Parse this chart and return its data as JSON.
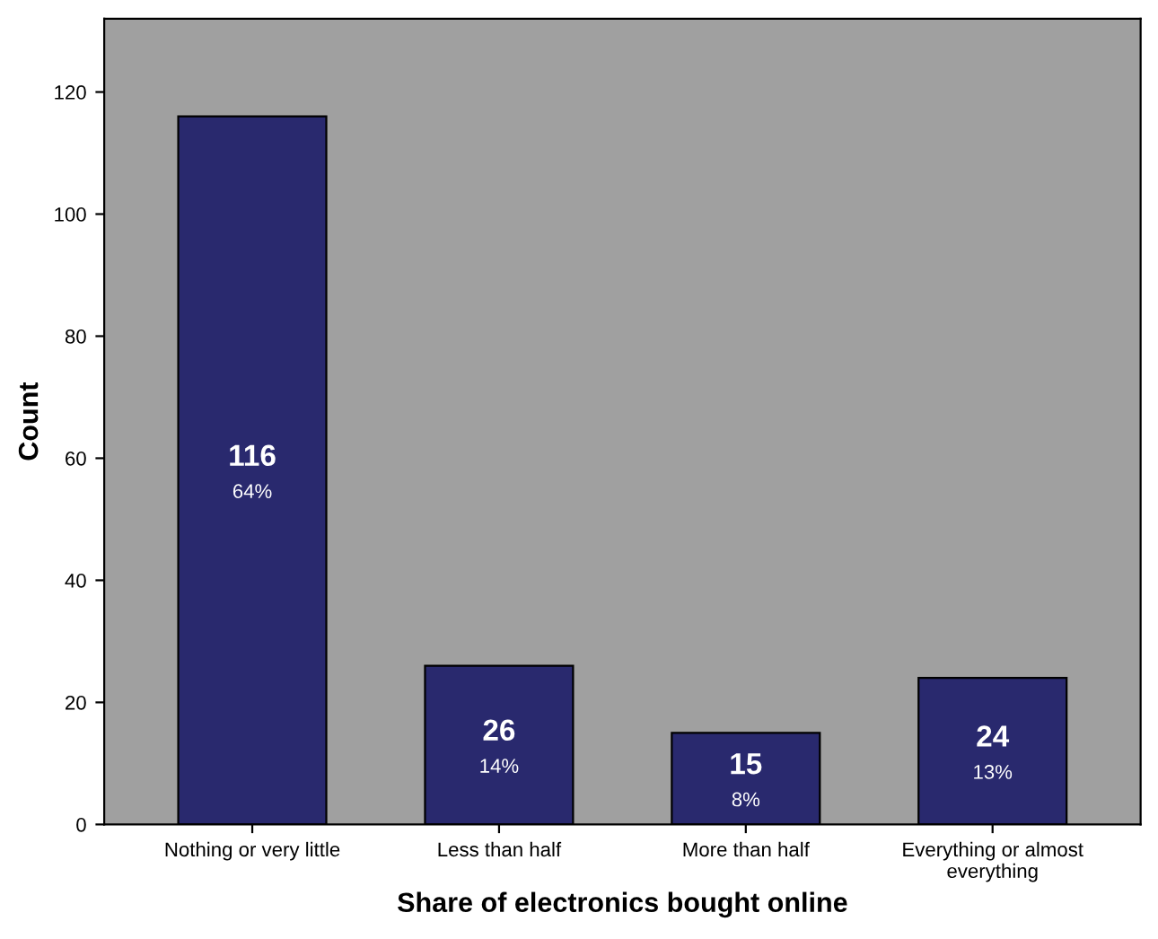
{
  "chart_data": {
    "type": "bar",
    "xlabel": "Share of electronics bought online",
    "ylabel": "Count",
    "categories": [
      "Nothing or very little",
      "Less than half",
      "More than half",
      "Everything or almost\neverything"
    ],
    "values": [
      116,
      26,
      15,
      24
    ],
    "color": "#29296e",
    "value_labels": [
      "116\n64%",
      "26\n14%",
      "15\n8%",
      "24\n13%"
    ],
    "ylim": [
      0,
      132
    ],
    "yticks": [
      0,
      20,
      40,
      60,
      80,
      100,
      120
    ],
    "grid": false,
    "legend": false
  }
}
